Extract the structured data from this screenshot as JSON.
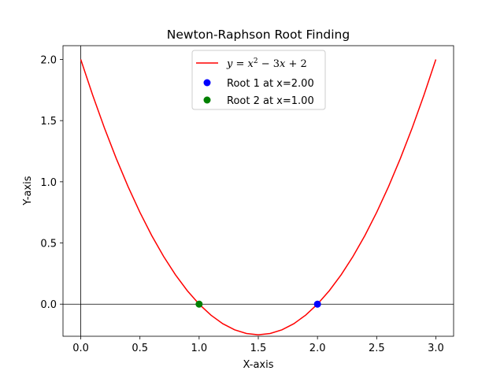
{
  "chart_data": {
    "type": "line",
    "title": "Newton-Raphson Root Finding",
    "xlabel": "X-axis",
    "ylabel": "Y-axis",
    "xlim": [
      -0.15,
      3.15
    ],
    "ylim": [
      -0.2625,
      2.1125
    ],
    "xticks": [
      0.0,
      0.5,
      1.0,
      1.5,
      2.0,
      2.5,
      3.0
    ],
    "xtick_labels": [
      "0.0",
      "0.5",
      "1.0",
      "1.5",
      "2.0",
      "2.5",
      "3.0"
    ],
    "yticks": [
      0.0,
      0.5,
      1.0,
      1.5,
      2.0
    ],
    "ytick_labels": [
      "0.0",
      "0.5",
      "1.0",
      "1.5",
      "2.0"
    ],
    "reference_lines": {
      "x": 0,
      "y": 0,
      "color": "#000000"
    },
    "grid": false,
    "legend_position": "top-center",
    "series": [
      {
        "name": "y = x² − 3x + 2",
        "kind": "line",
        "color": "#ff0000",
        "x": [
          0.0,
          0.1,
          0.2,
          0.3,
          0.4,
          0.5,
          0.6,
          0.7,
          0.8,
          0.9,
          1.0,
          1.1,
          1.2,
          1.3,
          1.4,
          1.5,
          1.6,
          1.7,
          1.8,
          1.9,
          2.0,
          2.1,
          2.2,
          2.3,
          2.4,
          2.5,
          2.6,
          2.7,
          2.8,
          2.9,
          3.0
        ],
        "y": [
          2.0,
          1.71,
          1.44,
          1.19,
          0.96,
          0.75,
          0.56,
          0.39,
          0.24,
          0.11,
          0.0,
          -0.09,
          -0.16,
          -0.21,
          -0.24,
          -0.25,
          -0.24,
          -0.21,
          -0.16,
          -0.09,
          0.0,
          0.11,
          0.24,
          0.39,
          0.56,
          0.75,
          0.96,
          1.19,
          1.44,
          1.71,
          2.0
        ]
      },
      {
        "name": "Root 1 at x=2.00",
        "kind": "scatter",
        "color": "#0000ff",
        "x": [
          2.0
        ],
        "y": [
          0.0
        ]
      },
      {
        "name": "Root 2 at x=1.00",
        "kind": "scatter",
        "color": "#008000",
        "x": [
          1.0
        ],
        "y": [
          0.0
        ]
      }
    ],
    "legend": {
      "curve": {
        "lhs": "y",
        "x": "x",
        "exp": "2",
        "mid": " − 3",
        "x2": "x",
        "rhs": " + 2"
      },
      "root1": "Root 1 at x=2.00",
      "root2": "Root 2 at x=1.00"
    }
  }
}
